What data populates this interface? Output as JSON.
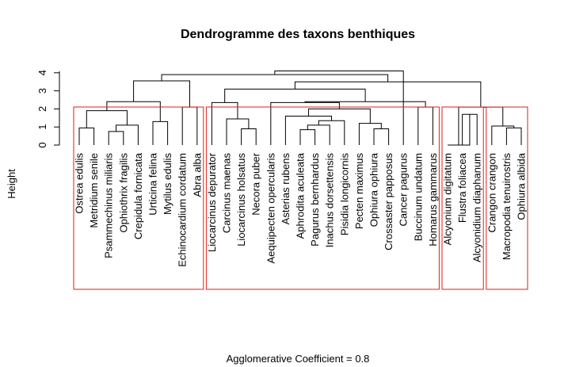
{
  "chart_data": {
    "type": "dendrogram",
    "title": "Dendrogramme des taxons benthiques",
    "ylabel": "Height",
    "xlabel": "",
    "footer": "Agglomerative Coefficient =  0.8",
    "ylim": [
      0,
      4.6
    ],
    "yticks": [
      0,
      1,
      2,
      3,
      4
    ],
    "grid": false,
    "leaves": [
      "Ostrea edulis",
      "Metridium senile",
      "Psammechinus miliaris",
      "Ophiothrix fragilis",
      "Crepidula fornicata",
      "Urticina felina",
      "Mytilus edulis",
      "Echinocardium cordatum",
      "Abra alba",
      "Liocarcinus depurator",
      "Carcinus maenas",
      "Liocarcinus holsatus",
      "Necora puber",
      "Aequipecten opercularis",
      "Asterias rubens",
      "Aphrodita aculeata",
      "Pagurus bernhardus",
      "Inachus dorsettensis",
      "Pisidia longicornis",
      "Pecten maximus",
      "Ophiura ophiura",
      "Crossaster papposus",
      "Cancer pagurus",
      "Buccinum undatum",
      "Homarus gammarus",
      "Alcyonium digitatum",
      "Flustra foliacea",
      "Alcyonidium diaphanum",
      "Crangon crangon",
      "Macropodia tenuirostris",
      "Ophiura albida"
    ],
    "merges": [
      {
        "children": [
          "L0",
          "L1"
        ],
        "height": 0.95
      },
      {
        "children": [
          "L2",
          "L3"
        ],
        "height": 0.75
      },
      {
        "children": [
          "M1",
          "L4"
        ],
        "height": 1.1
      },
      {
        "children": [
          "M0",
          "M2"
        ],
        "height": 1.9
      },
      {
        "children": [
          "L5",
          "L6"
        ],
        "height": 1.3
      },
      {
        "children": [
          "M3",
          "M4"
        ],
        "height": 2.4
      },
      {
        "children": [
          "L7",
          "L8"
        ],
        "height": 2.1
      },
      {
        "children": [
          "M5",
          "M6"
        ],
        "height": 3.55
      },
      {
        "children": [
          "L11",
          "L12"
        ],
        "height": 0.9
      },
      {
        "children": [
          "L10",
          "M8"
        ],
        "height": 1.45
      },
      {
        "children": [
          "L9",
          "M9"
        ],
        "height": 2.35
      },
      {
        "children": [
          "L15",
          "L16"
        ],
        "height": 0.85
      },
      {
        "children": [
          "M11",
          "L17"
        ],
        "height": 1.1
      },
      {
        "children": [
          "M12",
          "L18"
        ],
        "height": 1.35
      },
      {
        "children": [
          "L14",
          "M13"
        ],
        "height": 1.6
      },
      {
        "children": [
          "L20",
          "L21"
        ],
        "height": 0.9
      },
      {
        "children": [
          "L19",
          "M15"
        ],
        "height": 1.2
      },
      {
        "children": [
          "M14",
          "M16"
        ],
        "height": 2.0
      },
      {
        "children": [
          "L13",
          "M17"
        ],
        "height": 2.35
      },
      {
        "children": [
          "L23",
          "L24"
        ],
        "height": 2.1
      },
      {
        "children": [
          "M18",
          "M19"
        ],
        "height": 2.4
      },
      {
        "children": [
          "M10",
          "M20"
        ],
        "height": 3.1
      },
      {
        "children": [
          "L26",
          "L27"
        ],
        "height": 1.7
      },
      {
        "children": [
          "L25",
          "M22"
        ],
        "height": 0.0
      },
      {
        "children": [
          "L29",
          "L30"
        ],
        "height": 0.95
      },
      {
        "children": [
          "L28",
          "M24"
        ],
        "height": 1.05
      },
      {
        "children": [
          "M23",
          "M25"
        ],
        "height": 2.1
      },
      {
        "children": [
          "M21",
          "M26"
        ],
        "height": 3.5
      },
      {
        "children": [
          "M7",
          "M27"
        ],
        "height": 3.9
      },
      {
        "children": [
          "L22",
          "M28"
        ],
        "height": 4.1
      }
    ],
    "clusters": [
      {
        "from": 0,
        "to": 8
      },
      {
        "from": 9,
        "to": 24
      },
      {
        "from": 25,
        "to": 27
      },
      {
        "from": 28,
        "to": 30
      }
    ],
    "colors": {
      "cluster_box": "#df1f1f",
      "tree": "#000000"
    }
  }
}
